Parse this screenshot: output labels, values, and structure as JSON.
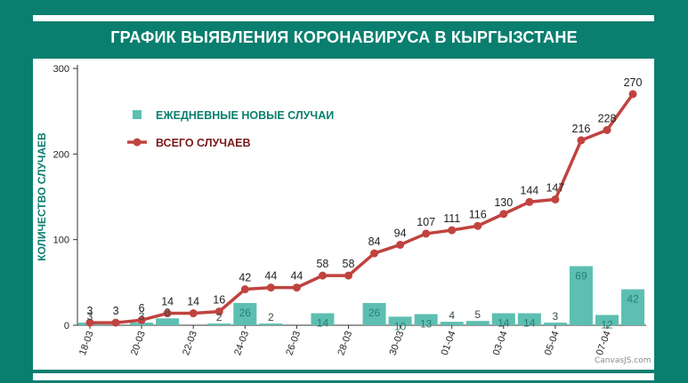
{
  "title": "ГРАФИК ВЫЯВЛЕНИЯ КОРОНАВИРУСА В КЫРГЫЗСТАНЕ",
  "credit": "CanvasJS.com",
  "colors": {
    "background": "#0a7f6f",
    "bars": "#5cbfb1",
    "bar_labels": "#1f8f80",
    "line": "#c0433f",
    "axis": "#333333"
  },
  "chart_data": {
    "type": "bar",
    "title": "ГРАФИК ВЫЯВЛЕНИЯ КОРОНАВИРУСА В КЫРГЫЗСТАНЕ",
    "ylabel": "КОЛИЧЕСТВО СЛУЧАЕВ",
    "xlabel": "",
    "ylim": [
      0,
      300
    ],
    "yticks": [
      0,
      100,
      200,
      300
    ],
    "xtick_labels": [
      "18-03",
      "20-03",
      "22-03",
      "24-03",
      "26-03",
      "28-03",
      "30-03",
      "01-04",
      "03-04",
      "05-04",
      "07-04"
    ],
    "categories": [
      "18-03",
      "19-03",
      "20-03",
      "21-03",
      "22-03",
      "23-03",
      "24-03",
      "25-03",
      "26-03",
      "27-03",
      "28-03",
      "29-03",
      "30-03",
      "31-03",
      "01-04",
      "02-04",
      "03-04",
      "04-04",
      "05-04",
      "06-04",
      "07-04",
      "08-04"
    ],
    "legend_position": "top-left",
    "series": [
      {
        "name": "ЕЖЕДНЕВНЫЕ НОВЫЕ СЛУЧАИ",
        "type": "bar",
        "values": [
          3,
          0,
          3,
          8,
          0,
          2,
          26,
          2,
          0,
          14,
          0,
          26,
          10,
          13,
          4,
          5,
          14,
          14,
          3,
          69,
          12,
          42
        ],
        "labels": [
          "3",
          "",
          "3",
          "8",
          "",
          "2",
          "26",
          "2",
          "",
          "14",
          "",
          "26",
          "10",
          "13",
          "4",
          "5",
          "14",
          "14",
          "3",
          "69",
          "12",
          "42"
        ]
      },
      {
        "name": "ВСЕГО СЛУЧАЕВ",
        "type": "line",
        "values": [
          3,
          3,
          6,
          14,
          14,
          16,
          42,
          44,
          44,
          58,
          58,
          84,
          94,
          107,
          111,
          116,
          130,
          144,
          147,
          216,
          228,
          270
        ]
      }
    ]
  }
}
